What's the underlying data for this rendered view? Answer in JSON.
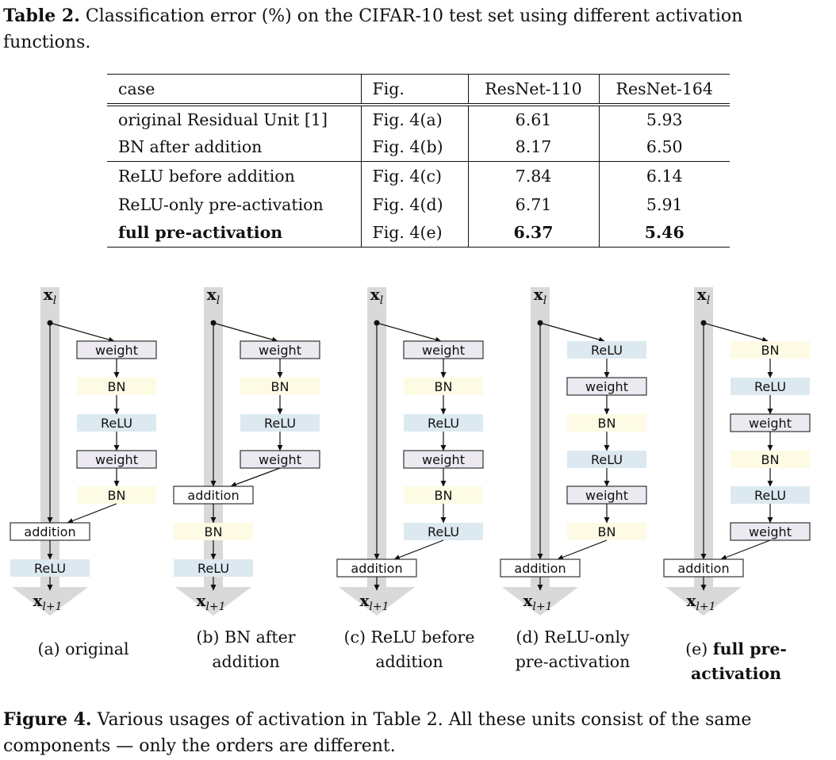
{
  "table_caption": {
    "label": "Table 2.",
    "text": "Classification error (%) on the CIFAR-10 test set using different activation functions."
  },
  "table": {
    "headers": [
      "case",
      "Fig.",
      "ResNet-110",
      "ResNet-164"
    ],
    "rows": [
      {
        "case": "original Residual Unit [1]",
        "fig": "Fig. 4(a)",
        "r110": "6.61",
        "r164": "5.93",
        "bold": false,
        "group_end": false
      },
      {
        "case": "BN after addition",
        "fig": "Fig. 4(b)",
        "r110": "8.17",
        "r164": "6.50",
        "bold": false,
        "group_end": true
      },
      {
        "case": "ReLU before addition",
        "fig": "Fig. 4(c)",
        "r110": "7.84",
        "r164": "6.14",
        "bold": false,
        "group_end": false
      },
      {
        "case": "ReLU-only pre-activation",
        "fig": "Fig. 4(d)",
        "r110": "6.71",
        "r164": "5.91",
        "bold": false,
        "group_end": false
      },
      {
        "case": "full pre-activation",
        "fig": "Fig. 4(e)",
        "r110": "6.37",
        "r164": "5.46",
        "bold": true,
        "group_end": false
      }
    ]
  },
  "figure": {
    "input_label": "x",
    "input_sub": "l",
    "output_label": "x",
    "output_sub": "l+1",
    "colors": {
      "trunk": "#d9d9d9",
      "weight": "#ece9f1",
      "bn": "#fdfbe4",
      "relu": "#dde9f0",
      "addition": "#ffffff",
      "line": "#111111"
    },
    "diagrams": [
      {
        "id": "a",
        "branch": [
          "weight",
          "BN",
          "ReLU",
          "weight",
          "BN"
        ],
        "addition_row": 6,
        "after_addition": [
          "ReLU"
        ],
        "subcaption_prefix": "(a) original",
        "subcaption_bold": "",
        "subcaption_lines": [
          "(a) original"
        ]
      },
      {
        "id": "b",
        "branch": [
          "weight",
          "BN",
          "ReLU",
          "weight"
        ],
        "addition_row": 5,
        "after_addition": [
          "BN",
          "ReLU"
        ],
        "subcaption_lines": [
          "(b) BN after",
          "addition"
        ]
      },
      {
        "id": "c",
        "branch": [
          "weight",
          "BN",
          "ReLU",
          "weight",
          "BN",
          "ReLU"
        ],
        "addition_row": 7,
        "after_addition": [],
        "subcaption_lines": [
          "(c) ReLU before",
          "addition"
        ]
      },
      {
        "id": "d",
        "branch": [
          "ReLU",
          "weight",
          "BN",
          "ReLU",
          "weight",
          "BN"
        ],
        "addition_row": 7,
        "after_addition": [],
        "subcaption_lines": [
          "(d) ReLU-only",
          "pre-activation"
        ]
      },
      {
        "id": "e",
        "branch": [
          "BN",
          "ReLU",
          "weight",
          "BN",
          "ReLU",
          "weight"
        ],
        "addition_row": 7,
        "after_addition": [],
        "subcaption_lines": [
          "(e) ",
          "full pre-activation"
        ]
      }
    ],
    "addition_label": "addition"
  },
  "figure_caption": {
    "label": "Figure 4.",
    "text": "Various usages of activation in Table 2. All these units consist of the same components — only the orders are different."
  }
}
